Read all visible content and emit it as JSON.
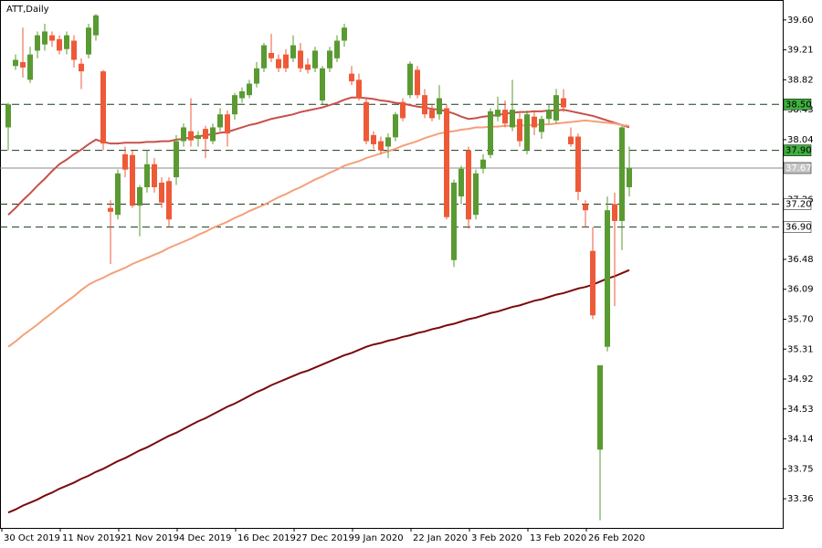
{
  "chart_data": {
    "type": "candlestick",
    "title": "ATT,Daily",
    "categories": [
      "30 Oct 2019",
      null,
      null,
      null,
      null,
      null,
      null,
      null,
      "11 Nov 2019",
      null,
      null,
      null,
      null,
      null,
      null,
      null,
      "21 Nov 2019",
      null,
      null,
      null,
      null,
      null,
      null,
      null,
      "4 Dec 2019",
      null,
      null,
      null,
      null,
      null,
      null,
      null,
      "16 Dec 2019",
      null,
      null,
      null,
      null,
      null,
      null,
      null,
      "27 Dec 2019",
      null,
      null,
      null,
      null,
      null,
      null,
      null,
      "9 Jan 2020",
      null,
      null,
      null,
      null,
      null,
      null,
      null,
      "22 Jan 2020",
      null,
      null,
      null,
      null,
      null,
      null,
      null,
      "3 Feb 2020",
      null,
      null,
      null,
      null,
      null,
      null,
      null,
      "13 Feb 2020",
      null,
      null,
      null,
      null,
      null,
      null,
      null,
      "26 Feb 2020",
      null,
      null,
      null,
      null,
      null
    ],
    "open": [
      38.2,
      39.0,
      39.05,
      38.82,
      39.2,
      39.28,
      39.4,
      39.35,
      39.22,
      39.33,
      39.03,
      39.15,
      39.4,
      38.93,
      37.15,
      37.06,
      37.85,
      37.84,
      37.18,
      37.42,
      37.72,
      37.48,
      37.5,
      37.55,
      38.02,
      38.15,
      38.05,
      38.18,
      38.02,
      38.2,
      38.37,
      38.37,
      38.58,
      38.62,
      38.77,
      38.97,
      39.17,
      39.09,
      39.15,
      39.1,
      39.2,
      39.02,
      38.97,
      38.55,
      38.97,
      39.1,
      39.33,
      38.9,
      38.82,
      38.53,
      38.1,
      38.02,
      37.95,
      38.07,
      38.53,
      38.62,
      38.95,
      38.62,
      38.43,
      38.37,
      38.45,
      36.47,
      37.3,
      37.9,
      37.06,
      37.66,
      37.84,
      38.34,
      38.43,
      38.2,
      38.31,
      37.9,
      38.34,
      38.14,
      38.31,
      38.29,
      38.58,
      38.08,
      38.08,
      37.2,
      36.59,
      34.0,
      35.34,
      37.2,
      36.98,
      37.42
    ],
    "high": [
      38.52,
      39.15,
      39.5,
      39.25,
      39.45,
      39.55,
      39.45,
      39.4,
      39.45,
      39.4,
      39.1,
      39.55,
      39.68,
      38.95,
      37.25,
      37.65,
      37.95,
      37.9,
      37.45,
      37.9,
      37.8,
      37.55,
      37.55,
      38.1,
      38.25,
      38.58,
      38.15,
      38.22,
      38.25,
      38.45,
      38.42,
      38.65,
      38.72,
      38.82,
      39.05,
      39.3,
      39.42,
      39.15,
      39.22,
      39.4,
      39.3,
      39.1,
      39.25,
      39.0,
      39.25,
      39.4,
      39.55,
      39.0,
      38.9,
      38.58,
      38.15,
      38.08,
      38.12,
      38.4,
      38.58,
      39.06,
      39.0,
      38.7,
      38.5,
      38.75,
      38.5,
      37.52,
      37.7,
      37.95,
      37.65,
      37.85,
      38.45,
      38.6,
      38.55,
      38.82,
      38.4,
      38.42,
      38.4,
      38.35,
      38.5,
      38.7,
      38.7,
      38.2,
      38.12,
      37.25,
      36.9,
      35.1,
      37.3,
      37.35,
      38.22,
      37.95
    ],
    "low": [
      37.9,
      38.95,
      38.85,
      38.78,
      39.1,
      39.2,
      39.25,
      39.15,
      39.15,
      38.98,
      38.7,
      39.1,
      39.33,
      37.9,
      36.42,
      37.0,
      37.55,
      37.15,
      36.78,
      37.35,
      37.35,
      37.15,
      36.9,
      37.45,
      37.95,
      37.95,
      37.95,
      37.8,
      37.98,
      38.15,
      37.95,
      38.3,
      38.52,
      38.58,
      38.72,
      38.92,
      39.05,
      38.92,
      38.92,
      39.05,
      38.92,
      38.9,
      38.92,
      38.5,
      38.92,
      39.05,
      39.25,
      38.75,
      38.55,
      37.98,
      37.92,
      37.85,
      37.8,
      38.02,
      38.28,
      38.58,
      38.58,
      38.32,
      38.28,
      38.3,
      37.0,
      36.38,
      37.2,
      36.88,
      37.0,
      37.6,
      37.8,
      38.28,
      38.2,
      38.15,
      37.95,
      37.85,
      38.1,
      38.05,
      38.25,
      38.25,
      38.4,
      37.95,
      37.25,
      36.9,
      35.7,
      33.08,
      35.28,
      35.87,
      36.6,
      37.3
    ],
    "close": [
      38.5,
      39.08,
      38.98,
      39.15,
      39.4,
      39.45,
      39.33,
      39.2,
      39.4,
      39.08,
      38.93,
      39.5,
      39.66,
      37.99,
      37.1,
      37.6,
      37.65,
      37.18,
      37.42,
      37.72,
      37.42,
      37.22,
      37.0,
      38.02,
      38.2,
      38.03,
      38.1,
      38.05,
      38.2,
      38.37,
      38.12,
      38.62,
      38.67,
      38.77,
      38.97,
      39.27,
      39.1,
      38.97,
      38.97,
      39.27,
      38.97,
      38.95,
      39.2,
      38.97,
      39.2,
      39.33,
      39.5,
      38.8,
      38.58,
      38.02,
      37.98,
      37.9,
      38.07,
      38.37,
      38.32,
      39.03,
      38.62,
      38.37,
      38.32,
      38.58,
      37.03,
      37.48,
      37.66,
      37.0,
      37.6,
      37.78,
      38.41,
      38.43,
      38.25,
      38.43,
      38.02,
      38.37,
      38.2,
      38.31,
      38.43,
      38.62,
      38.46,
      37.98,
      37.36,
      37.12,
      35.75,
      35.1,
      37.12,
      36.98,
      38.2,
      37.67
    ],
    "up_color": "#5a9a32",
    "down_color": "#ee5a38",
    "lines": [
      {
        "color": "#c8504a",
        "values": [
          37.06,
          37.15,
          37.25,
          37.34,
          37.44,
          37.53,
          37.63,
          37.72,
          37.78,
          37.85,
          37.91,
          37.98,
          38.04,
          38.01,
          37.99,
          37.99,
          38.0,
          38.0,
          38.0,
          38.01,
          38.01,
          38.02,
          38.02,
          38.04,
          38.05,
          38.07,
          38.08,
          38.1,
          38.11,
          38.13,
          38.14,
          38.17,
          38.2,
          38.23,
          38.25,
          38.28,
          38.31,
          38.33,
          38.35,
          38.37,
          38.4,
          38.42,
          38.44,
          38.46,
          38.49,
          38.52,
          38.56,
          38.59,
          38.59,
          38.58,
          38.57,
          38.55,
          38.54,
          38.52,
          38.51,
          38.49,
          38.47,
          38.46,
          38.44,
          38.43,
          38.41,
          38.38,
          38.34,
          38.31,
          38.32,
          38.34,
          38.35,
          38.36,
          38.38,
          38.39,
          38.4,
          38.4,
          38.41,
          38.41,
          38.42,
          38.42,
          38.43,
          38.41,
          38.39,
          38.37,
          38.35,
          38.32,
          38.29,
          38.26,
          38.23,
          38.2
        ]
      },
      {
        "color": "#f4a07a",
        "values": [
          35.34,
          35.41,
          35.49,
          35.56,
          35.63,
          35.71,
          35.78,
          35.86,
          35.93,
          36.0,
          36.08,
          36.15,
          36.2,
          36.24,
          36.29,
          36.33,
          36.37,
          36.42,
          36.46,
          36.5,
          36.54,
          36.58,
          36.63,
          36.67,
          36.71,
          36.75,
          36.8,
          36.84,
          36.89,
          36.93,
          36.97,
          37.02,
          37.06,
          37.11,
          37.15,
          37.19,
          37.24,
          37.29,
          37.33,
          37.38,
          37.42,
          37.47,
          37.52,
          37.56,
          37.61,
          37.65,
          37.7,
          37.73,
          37.76,
          37.8,
          37.83,
          37.86,
          37.89,
          37.92,
          37.96,
          37.99,
          38.02,
          38.06,
          38.09,
          38.12,
          38.14,
          38.15,
          38.17,
          38.18,
          38.2,
          38.2,
          38.21,
          38.21,
          38.22,
          38.22,
          38.22,
          38.23,
          38.23,
          38.24,
          38.24,
          38.25,
          38.26,
          38.27,
          38.28,
          38.29,
          38.28,
          38.27,
          38.26,
          38.25,
          38.23,
          38.22
        ]
      },
      {
        "color": "#7a0a0a",
        "values": [
          33.18,
          33.22,
          33.27,
          33.31,
          33.35,
          33.4,
          33.44,
          33.49,
          33.53,
          33.57,
          33.62,
          33.66,
          33.71,
          33.75,
          33.8,
          33.85,
          33.89,
          33.94,
          33.99,
          34.03,
          34.08,
          34.13,
          34.18,
          34.22,
          34.27,
          34.32,
          34.37,
          34.41,
          34.46,
          34.51,
          34.56,
          34.6,
          34.65,
          34.7,
          34.75,
          34.79,
          34.84,
          34.88,
          34.92,
          34.96,
          35.0,
          35.03,
          35.07,
          35.11,
          35.15,
          35.19,
          35.23,
          35.26,
          35.3,
          35.34,
          35.37,
          35.39,
          35.42,
          35.44,
          35.47,
          35.49,
          35.52,
          35.54,
          35.57,
          35.59,
          35.62,
          35.64,
          35.67,
          35.7,
          35.72,
          35.75,
          35.78,
          35.8,
          35.83,
          35.86,
          35.88,
          35.91,
          35.94,
          35.96,
          35.99,
          36.02,
          36.04,
          36.07,
          36.1,
          36.12,
          36.15,
          36.19,
          36.23,
          36.26,
          36.3,
          36.34
        ]
      }
    ],
    "levels": [
      {
        "value": 38.5,
        "label": "38.50"
      },
      {
        "value": 37.9,
        "label": "37.90"
      },
      {
        "value": 37.2,
        "label": "37.20"
      },
      {
        "value": 36.9,
        "label": "36.90"
      }
    ],
    "last_price": 37.67,
    "ylim": [
      32.98,
      39.86
    ],
    "yticks": [
      {
        "value": 39.6,
        "label": "39.60"
      },
      39.21,
      38.82,
      38.43,
      38.04,
      37.26,
      36.48,
      36.09,
      {
        "value": 35.7,
        "label": "35.70"
      },
      35.31,
      34.92,
      34.53,
      34.14,
      33.75,
      33.36
    ]
  }
}
